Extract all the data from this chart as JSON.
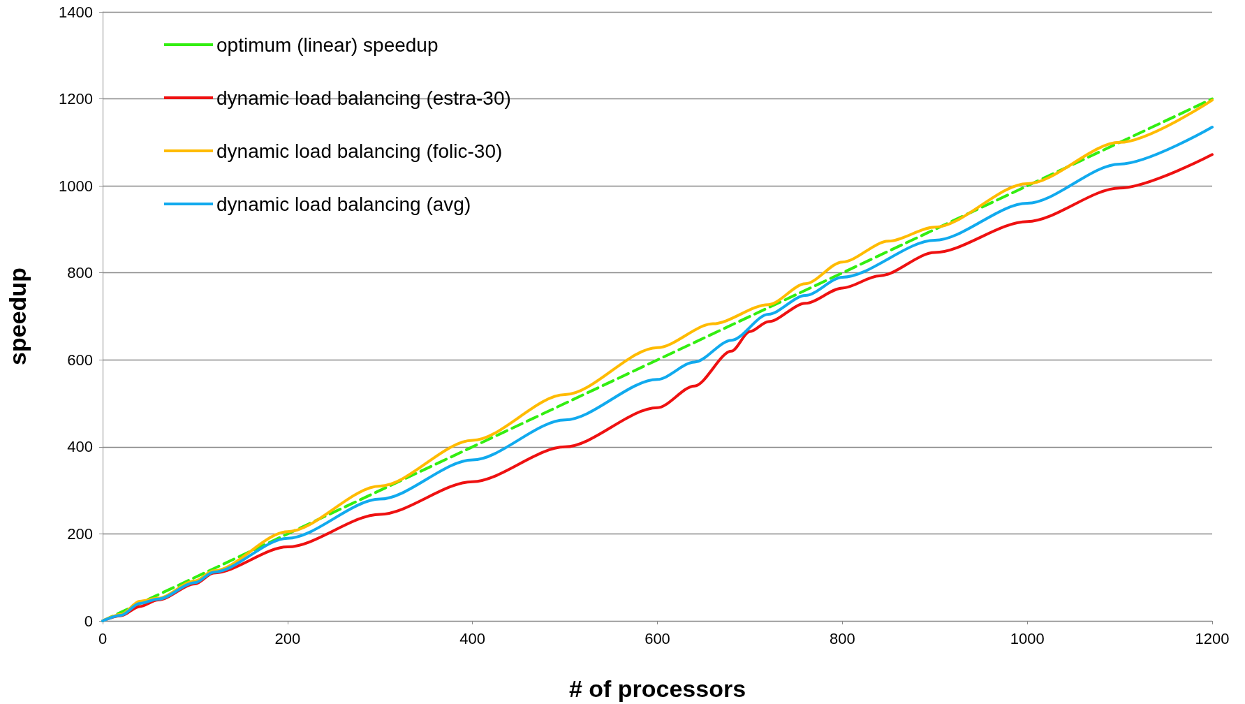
{
  "chart_data": {
    "type": "line",
    "xlabel": "# of processors",
    "ylabel": "speedup",
    "xlim": [
      0,
      1200
    ],
    "xticks": [
      0,
      200,
      400,
      600,
      800,
      1000,
      1200
    ],
    "ylim": [
      0,
      1400
    ],
    "yticks": [
      0,
      200,
      400,
      600,
      800,
      1000,
      1200,
      1400
    ],
    "grid": "y",
    "legend": "top left",
    "marker": "none",
    "series": [
      {
        "name": "optimum (linear) speedup",
        "color": "#33ee11",
        "line_style": "dashed",
        "x": [
          0,
          1200
        ],
        "values": [
          0,
          1200
        ]
      },
      {
        "name": "dynamic load balancing (estra-30)",
        "color": "#ee1111",
        "line_style": "solid",
        "x": [
          0,
          20,
          40,
          60,
          100,
          120,
          200,
          300,
          400,
          500,
          600,
          640,
          680,
          700,
          720,
          760,
          800,
          840,
          900,
          1000,
          1100,
          1200
        ],
        "values": [
          0,
          12,
          33,
          48,
          85,
          110,
          170,
          245,
          320,
          400,
          490,
          540,
          620,
          665,
          688,
          730,
          765,
          793,
          847,
          918,
          995,
          1072
        ]
      },
      {
        "name": "dynamic load balancing (folic-30)",
        "color": "#ffbb00",
        "line_style": "solid",
        "x": [
          0,
          20,
          40,
          60,
          100,
          120,
          200,
          300,
          400,
          500,
          600,
          660,
          720,
          760,
          800,
          850,
          900,
          1000,
          1100,
          1200
        ],
        "values": [
          0,
          15,
          45,
          52,
          92,
          115,
          205,
          310,
          415,
          520,
          628,
          683,
          727,
          775,
          825,
          873,
          905,
          1005,
          1100,
          1197
        ]
      },
      {
        "name": "dynamic load balancing (avg)",
        "color": "#11aaee",
        "line_style": "solid",
        "x": [
          0,
          20,
          40,
          60,
          100,
          120,
          200,
          300,
          400,
          500,
          600,
          640,
          680,
          720,
          760,
          800,
          900,
          1000,
          1100,
          1200
        ],
        "values": [
          0,
          13,
          40,
          50,
          88,
          112,
          190,
          280,
          370,
          462,
          555,
          595,
          645,
          705,
          748,
          790,
          875,
          960,
          1050,
          1135
        ]
      }
    ]
  }
}
